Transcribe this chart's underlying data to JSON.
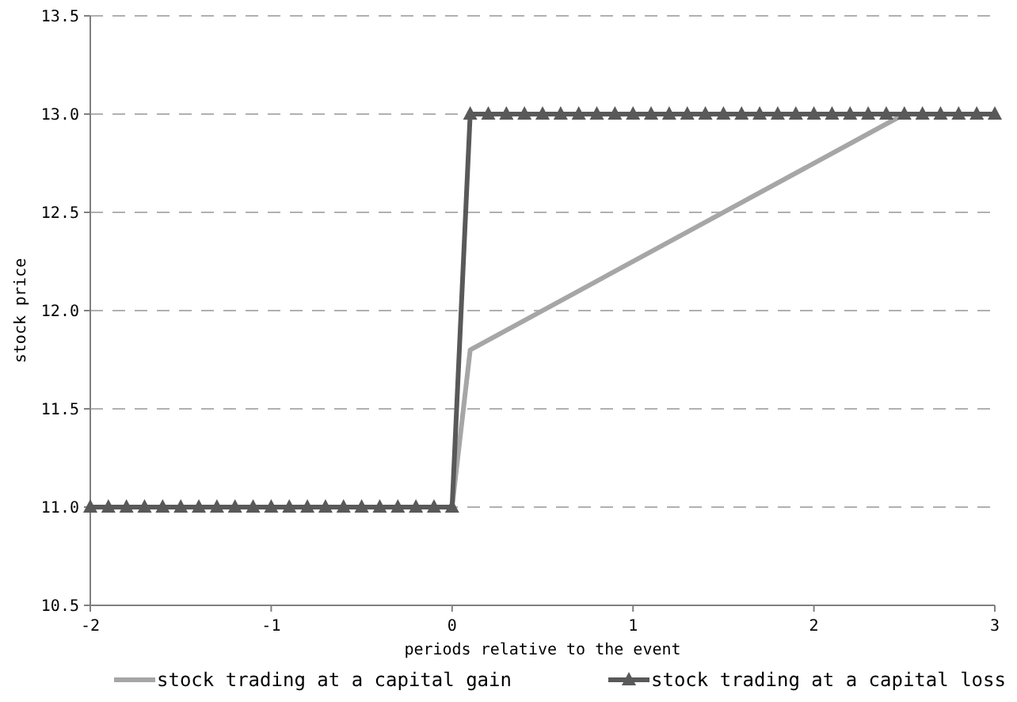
{
  "chart_data": {
    "type": "line",
    "xlabel": "periods relative to the event",
    "ylabel": "stock price",
    "xlim": [
      -2,
      3
    ],
    "xticks": [
      -2,
      -1,
      0,
      1,
      2,
      3
    ],
    "ylim": [
      10.5,
      13.5
    ],
    "yticks": [
      {
        "value": 10.5,
        "label": "10.5"
      },
      {
        "value": 11,
        "label": "11.0"
      },
      {
        "value": 11.5,
        "label": "11.5"
      },
      {
        "value": 12,
        "label": "12.0"
      },
      {
        "value": 12.5,
        "label": "12.5"
      },
      {
        "value": 13,
        "label": "13.0"
      },
      {
        "value": 13.5,
        "label": "13.5"
      }
    ],
    "grid": "y",
    "legend": "bottom",
    "series": [
      {
        "name": "stock trading at a capital gain",
        "color": "#a6a6a6",
        "marker": "none",
        "x": [
          -2,
          0,
          0.1,
          2.5,
          3
        ],
        "values": [
          11,
          11,
          11.8,
          13,
          13
        ]
      },
      {
        "name": "stock trading at a capital loss",
        "color": "#595959",
        "marker": "triangle",
        "x": [
          -2,
          -1.9,
          -1.8,
          -1.7,
          -1.6,
          -1.5,
          -1.4,
          -1.3,
          -1.2,
          -1.1,
          -1,
          -0.9,
          -0.8,
          -0.7,
          -0.6,
          -0.5,
          -0.4,
          -0.3,
          -0.2,
          -0.1,
          0,
          0.1,
          0.2,
          0.3,
          0.4,
          0.5,
          0.6,
          0.7,
          0.8,
          0.9,
          1,
          1.1,
          1.2,
          1.3,
          1.4,
          1.5,
          1.6,
          1.7,
          1.8,
          1.9,
          2,
          2.1,
          2.2,
          2.3,
          2.4,
          2.5,
          2.6,
          2.7,
          2.8,
          2.9,
          3
        ],
        "values": [
          11,
          11,
          11,
          11,
          11,
          11,
          11,
          11,
          11,
          11,
          11,
          11,
          11,
          11,
          11,
          11,
          11,
          11,
          11,
          11,
          11,
          13,
          13,
          13,
          13,
          13,
          13,
          13,
          13,
          13,
          13,
          13,
          13,
          13,
          13,
          13,
          13,
          13,
          13,
          13,
          13,
          13,
          13,
          13,
          13,
          13,
          13,
          13,
          13,
          13,
          13
        ]
      }
    ]
  }
}
